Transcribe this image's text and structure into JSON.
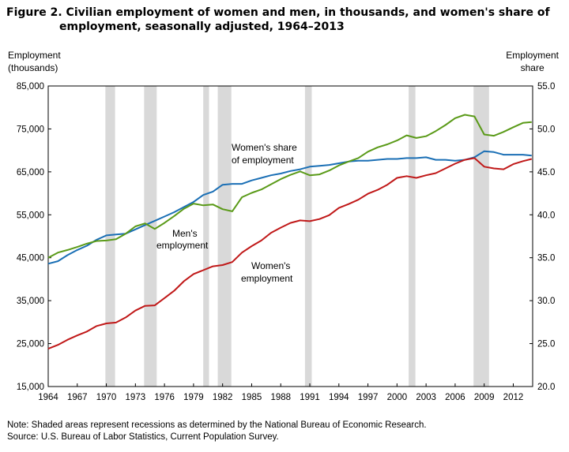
{
  "title": {
    "line1": "Figure 2. Civilian employment of women and men, in thousands, and women's share of",
    "line2": "employment, seasonally  adjusted, 1964–2013"
  },
  "left_axis_label": {
    "line1": "Employment",
    "line2": "(thousands)"
  },
  "right_axis_label": {
    "line1": "Employment",
    "line2": "share"
  },
  "annotations": {
    "womens_share": [
      "Women's share",
      "of employment"
    ],
    "mens_employment": [
      "Men's",
      "employment"
    ],
    "womens_employment": [
      "Women's",
      "employment"
    ]
  },
  "note": "Note: Shaded areas represent recessions as determined by the National Bureau of Economic Research.",
  "source": "Source:  U.S. Bureau  of Labor Statistics,  Current Population  Survey.",
  "colors": {
    "womens_share": "#1a6fb5",
    "mens_employment": "#5a9a18",
    "womens_employment": "#c01818",
    "recession": "#d9d9d9"
  },
  "chart_data": {
    "type": "line",
    "x_range": [
      1964,
      2014
    ],
    "x_ticks": [
      "1964",
      "1967",
      "1970",
      "1973",
      "1976",
      "1979",
      "1982",
      "1985",
      "1988",
      "1991",
      "1994",
      "1997",
      "2000",
      "2003",
      "2006",
      "2009",
      "2012"
    ],
    "left_axis": {
      "range": [
        15000,
        85000
      ],
      "ticks": [
        "15,000",
        "25,000",
        "35,000",
        "45,000",
        "55,000",
        "65,000",
        "75,000",
        "85,000"
      ]
    },
    "right_axis": {
      "range": [
        20.0,
        55.0
      ],
      "ticks": [
        "20.0",
        "25.0",
        "30.0",
        "35.0",
        "40.0",
        "45.0",
        "50.0",
        "55.0"
      ]
    },
    "recessions": [
      [
        1969.9,
        1970.9
      ],
      [
        1973.9,
        1975.2
      ],
      [
        1980.0,
        1980.6
      ],
      [
        1981.5,
        1982.9
      ],
      [
        1990.5,
        1991.2
      ],
      [
        2001.2,
        2001.9
      ],
      [
        2007.9,
        2009.5
      ]
    ],
    "series": [
      {
        "key": "womens_share",
        "axis": "right",
        "points": [
          [
            1964,
            34.3
          ],
          [
            1965,
            34.6
          ],
          [
            1966,
            35.3
          ],
          [
            1967,
            35.9
          ],
          [
            1968,
            36.4
          ],
          [
            1969,
            37.1
          ],
          [
            1970,
            37.6
          ],
          [
            1971,
            37.7
          ],
          [
            1972,
            37.8
          ],
          [
            1973,
            38.3
          ],
          [
            1974,
            38.8
          ],
          [
            1975,
            39.3
          ],
          [
            1976,
            39.8
          ],
          [
            1977,
            40.3
          ],
          [
            1978,
            40.9
          ],
          [
            1979,
            41.5
          ],
          [
            1980,
            42.3
          ],
          [
            1981,
            42.7
          ],
          [
            1982,
            43.5
          ],
          [
            1983,
            43.6
          ],
          [
            1984,
            43.6
          ],
          [
            1985,
            44.0
          ],
          [
            1986,
            44.3
          ],
          [
            1987,
            44.6
          ],
          [
            1988,
            44.8
          ],
          [
            1989,
            45.1
          ],
          [
            1990,
            45.3
          ],
          [
            1991,
            45.6
          ],
          [
            1992,
            45.7
          ],
          [
            1993,
            45.8
          ],
          [
            1994,
            46.0
          ],
          [
            1995,
            46.2
          ],
          [
            1996,
            46.3
          ],
          [
            1997,
            46.3
          ],
          [
            1998,
            46.4
          ],
          [
            1999,
            46.5
          ],
          [
            2000,
            46.5
          ],
          [
            2001,
            46.6
          ],
          [
            2002,
            46.6
          ],
          [
            2003,
            46.7
          ],
          [
            2004,
            46.4
          ],
          [
            2005,
            46.4
          ],
          [
            2006,
            46.3
          ],
          [
            2007,
            46.4
          ],
          [
            2008,
            46.7
          ],
          [
            2009,
            47.4
          ],
          [
            2010,
            47.3
          ],
          [
            2011,
            47.0
          ],
          [
            2012,
            47.0
          ],
          [
            2013,
            47.0
          ],
          [
            2013.9,
            46.9
          ]
        ]
      },
      {
        "key": "mens_employment",
        "axis": "left",
        "points": [
          [
            1964,
            45000
          ],
          [
            1965,
            46200
          ],
          [
            1966,
            46800
          ],
          [
            1967,
            47500
          ],
          [
            1968,
            48300
          ],
          [
            1969,
            48900
          ],
          [
            1970,
            49000
          ],
          [
            1971,
            49300
          ],
          [
            1972,
            50600
          ],
          [
            1973,
            52300
          ],
          [
            1974,
            53000
          ],
          [
            1975,
            51700
          ],
          [
            1976,
            53100
          ],
          [
            1977,
            54700
          ],
          [
            1978,
            56400
          ],
          [
            1979,
            57600
          ],
          [
            1980,
            57200
          ],
          [
            1981,
            57400
          ],
          [
            1982,
            56300
          ],
          [
            1983,
            55800
          ],
          [
            1984,
            59100
          ],
          [
            1985,
            60100
          ],
          [
            1986,
            60900
          ],
          [
            1987,
            62100
          ],
          [
            1988,
            63300
          ],
          [
            1989,
            64300
          ],
          [
            1990,
            65100
          ],
          [
            1991,
            64200
          ],
          [
            1992,
            64400
          ],
          [
            1993,
            65300
          ],
          [
            1994,
            66500
          ],
          [
            1995,
            67400
          ],
          [
            1996,
            68200
          ],
          [
            1997,
            69700
          ],
          [
            1998,
            70700
          ],
          [
            1999,
            71400
          ],
          [
            2000,
            72300
          ],
          [
            2001,
            73500
          ],
          [
            2002,
            72900
          ],
          [
            2003,
            73300
          ],
          [
            2004,
            74500
          ],
          [
            2005,
            75900
          ],
          [
            2006,
            77500
          ],
          [
            2007,
            78300
          ],
          [
            2008,
            77900
          ],
          [
            2009,
            73700
          ],
          [
            2010,
            73400
          ],
          [
            2011,
            74300
          ],
          [
            2012,
            75400
          ],
          [
            2013,
            76400
          ],
          [
            2013.9,
            76600
          ]
        ]
      },
      {
        "key": "womens_employment",
        "axis": "left",
        "points": [
          [
            1964,
            23800
          ],
          [
            1965,
            24700
          ],
          [
            1966,
            25900
          ],
          [
            1967,
            26900
          ],
          [
            1968,
            27800
          ],
          [
            1969,
            29100
          ],
          [
            1970,
            29700
          ],
          [
            1971,
            29900
          ],
          [
            1972,
            31100
          ],
          [
            1973,
            32700
          ],
          [
            1974,
            33800
          ],
          [
            1975,
            33900
          ],
          [
            1976,
            35600
          ],
          [
            1977,
            37300
          ],
          [
            1978,
            39500
          ],
          [
            1979,
            41200
          ],
          [
            1980,
            42100
          ],
          [
            1981,
            43000
          ],
          [
            1982,
            43300
          ],
          [
            1983,
            44000
          ],
          [
            1984,
            46200
          ],
          [
            1985,
            47700
          ],
          [
            1986,
            49000
          ],
          [
            1987,
            50800
          ],
          [
            1988,
            52000
          ],
          [
            1989,
            53100
          ],
          [
            1990,
            53700
          ],
          [
            1991,
            53500
          ],
          [
            1992,
            54000
          ],
          [
            1993,
            54900
          ],
          [
            1994,
            56600
          ],
          [
            1995,
            57500
          ],
          [
            1996,
            58500
          ],
          [
            1997,
            59900
          ],
          [
            1998,
            60800
          ],
          [
            1999,
            62000
          ],
          [
            2000,
            63600
          ],
          [
            2001,
            64000
          ],
          [
            2002,
            63600
          ],
          [
            2003,
            64200
          ],
          [
            2004,
            64700
          ],
          [
            2005,
            65800
          ],
          [
            2006,
            66900
          ],
          [
            2007,
            67800
          ],
          [
            2008,
            68200
          ],
          [
            2009,
            66200
          ],
          [
            2010,
            65800
          ],
          [
            2011,
            65600
          ],
          [
            2012,
            66800
          ],
          [
            2013,
            67500
          ],
          [
            2013.9,
            68000
          ]
        ]
      }
    ]
  }
}
